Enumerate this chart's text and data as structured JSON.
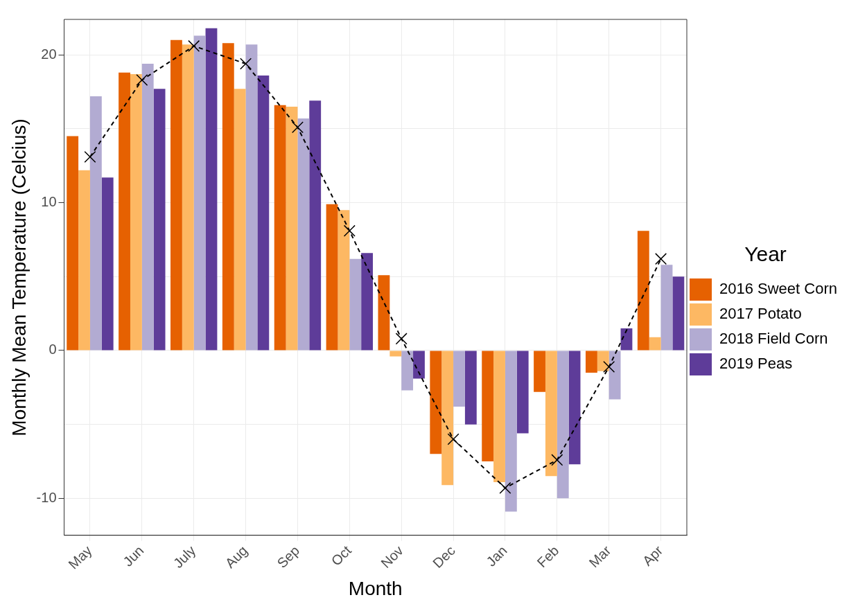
{
  "chart_data": {
    "type": "bar",
    "xlabel": "Month",
    "ylabel": "Monthly Mean Temperature (Celcius)",
    "legend_title": "Year",
    "categories": [
      "May",
      "Jun",
      "July",
      "Aug",
      "Sep",
      "Oct",
      "Nov",
      "Dec",
      "Jan",
      "Feb",
      "Mar",
      "Apr"
    ],
    "series": [
      {
        "name": "2016 Sweet Corn",
        "color": "#e66101",
        "values": [
          14.5,
          18.8,
          21.0,
          20.8,
          16.6,
          9.9,
          5.1,
          -7.0,
          -7.5,
          -2.8,
          -1.5,
          8.1
        ]
      },
      {
        "name": "2017 Potato",
        "color": "#fdb863",
        "values": [
          12.2,
          18.7,
          20.7,
          17.7,
          16.5,
          9.5,
          -0.4,
          -9.1,
          -8.9,
          -8.5,
          -1.4,
          0.9
        ]
      },
      {
        "name": "2018 Field Corn",
        "color": "#b2abd2",
        "values": [
          17.2,
          19.4,
          21.3,
          20.7,
          15.7,
          6.2,
          -2.7,
          -3.8,
          -10.9,
          -10.0,
          -3.3,
          5.8
        ]
      },
      {
        "name": "2019 Peas",
        "color": "#5e3c99",
        "values": [
          11.7,
          17.7,
          21.8,
          18.6,
          16.9,
          6.6,
          -1.9,
          -5.0,
          -5.6,
          -7.7,
          1.5,
          5.0
        ]
      },
      {
        "type": "line",
        "color": "#000000",
        "marker": "cross",
        "line_style": "dashed",
        "values": [
          13.1,
          18.3,
          20.6,
          19.4,
          15.1,
          8.1,
          0.8,
          -6.0,
          -9.3,
          -7.4,
          -1.1,
          6.2
        ]
      }
    ],
    "ylim": [
      -12.5,
      22.4
    ],
    "yticks": [
      -10,
      {
        "value": -5,
        "label": null
      },
      0,
      {
        "value": 5,
        "label": null
      },
      10,
      {
        "value": 15,
        "label": null
      },
      20
    ],
    "grid": true,
    "legend": "right"
  }
}
